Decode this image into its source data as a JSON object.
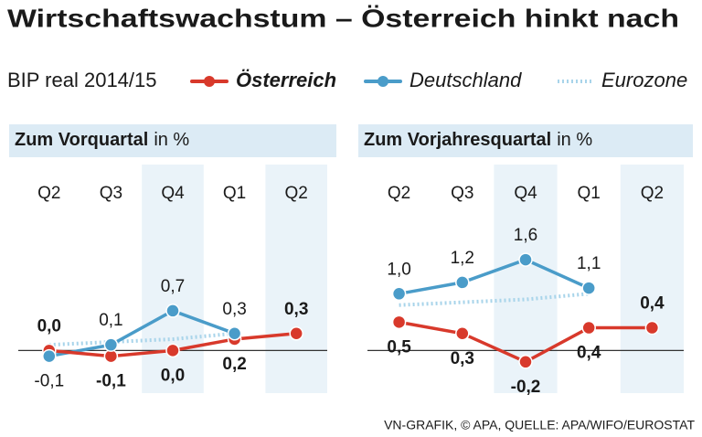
{
  "header": {
    "title": "Wirtschaftswachstum – Österreich hinkt nach",
    "legend_label": "BIP real 2014/15"
  },
  "footer": {
    "source": "VN-GRAFIK, © APA, QUELLE: APA/WIFO/EUROSTAT"
  },
  "chart_data": [
    {
      "type": "line",
      "subtitle": "Zum Vorquartal",
      "unit": "in %",
      "categories": [
        "Q2",
        "Q3",
        "Q4",
        "Q1",
        "Q2"
      ],
      "ylim": [
        -0.3,
        2.6
      ],
      "series": [
        {
          "name": "Österreich",
          "color": "#d8392b",
          "style": "solid",
          "values": [
            0.0,
            -0.1,
            0.0,
            0.2,
            0.3
          ],
          "value_labels": [
            "0,0",
            "-0,1",
            "0,0",
            "0,2",
            "0,3"
          ]
        },
        {
          "name": "Deutschland",
          "color": "#4a9cc9",
          "style": "solid",
          "values": [
            -0.1,
            0.1,
            0.7,
            0.3,
            null
          ],
          "value_labels": [
            "-0,1",
            "0,1",
            "0,7",
            "0,3",
            null
          ]
        },
        {
          "name": "Eurozone",
          "color": "#a8d4ea",
          "style": "dotted",
          "values": [
            0.1,
            0.15,
            0.2,
            0.3,
            null
          ]
        }
      ]
    },
    {
      "type": "line",
      "subtitle": "Zum Vorjahresquartal",
      "unit": "in %",
      "categories": [
        "Q2",
        "Q3",
        "Q4",
        "Q1",
        "Q2"
      ],
      "ylim": [
        -0.3,
        2.6
      ],
      "series": [
        {
          "name": "Österreich",
          "color": "#d8392b",
          "style": "solid",
          "values": [
            0.5,
            0.3,
            -0.2,
            0.4,
            0.4
          ],
          "value_labels": [
            "0,5",
            "0,3",
            "-0,2",
            "0,4",
            "0,4"
          ]
        },
        {
          "name": "Deutschland",
          "color": "#4a9cc9",
          "style": "solid",
          "values": [
            1.0,
            1.2,
            1.6,
            1.1,
            null
          ],
          "value_labels": [
            "1,0",
            "1,2",
            "1,6",
            "1,1",
            null
          ]
        },
        {
          "name": "Eurozone",
          "color": "#a8d4ea",
          "style": "dotted",
          "values": [
            0.8,
            0.85,
            0.9,
            1.0,
            null
          ]
        }
      ]
    }
  ]
}
